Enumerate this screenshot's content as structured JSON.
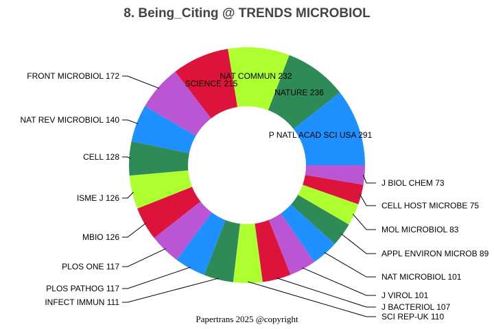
{
  "chart_data": {
    "type": "pie",
    "donut": true,
    "title": "8. Being_Citing @ TRENDS MICROBIOL",
    "footer": "Papertrans 2025 @copyright",
    "categories": [
      "P NATL ACAD SCI USA",
      "NATURE",
      "NAT COMMUN",
      "SCIENCE",
      "FRONT MICROBIOL",
      "NAT REV MICROBIOL",
      "CELL",
      "ISME J",
      "MBIO",
      "PLOS ONE",
      "PLOS PATHOG",
      "INFECT IMMUN",
      "SCI REP-UK",
      "J BACTERIOL",
      "J VIROL",
      "NAT MICROBIOL",
      "APPL ENVIRON MICROB",
      "MOL MICROBIOL",
      "CELL HOST MICROBE",
      "J BIOL CHEM"
    ],
    "values": [
      291,
      236,
      232,
      215,
      172,
      140,
      128,
      126,
      126,
      117,
      117,
      111,
      110,
      107,
      101,
      101,
      89,
      83,
      75,
      73
    ],
    "colors": [
      "#1E90FF",
      "#2E8B57",
      "#ADFF2F",
      "#DC143C",
      "#BA55D3"
    ],
    "direction": "counterclockwise",
    "start": "east"
  }
}
